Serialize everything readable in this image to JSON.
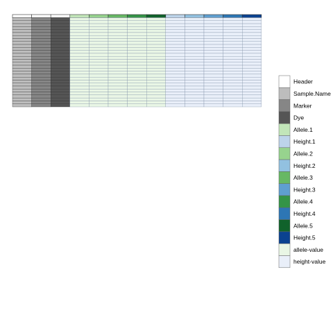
{
  "chart_data": {
    "type": "heatmap",
    "title": "",
    "xlabel": "",
    "ylabel": "",
    "columns": [
      "Sample.Name",
      "Marker",
      "Dye",
      "Allele.1",
      "Allele.2",
      "Allele.3",
      "Allele.4",
      "Allele.5",
      "Height.1",
      "Height.2",
      "Height.3",
      "Height.4",
      "Height.5"
    ],
    "header_row_count": 1,
    "body_row_count": 30,
    "legend_position": "right",
    "legend": [
      {
        "label": "Header",
        "color": "#ffffff"
      },
      {
        "label": "Sample.Name",
        "color": "#bdbdbd"
      },
      {
        "label": "Marker",
        "color": "#868686"
      },
      {
        "label": "Dye",
        "color": "#555555"
      },
      {
        "label": "Allele.1",
        "color": "#c2e6b9"
      },
      {
        "label": "Height.1",
        "color": "#bdd4ea"
      },
      {
        "label": "Allele.2",
        "color": "#97d38e"
      },
      {
        "label": "Height.2",
        "color": "#92c1e0"
      },
      {
        "label": "Allele.3",
        "color": "#67b864"
      },
      {
        "label": "Height.3",
        "color": "#5f9fd0"
      },
      {
        "label": "Allele.4",
        "color": "#349447"
      },
      {
        "label": "Height.4",
        "color": "#2d76b4"
      },
      {
        "label": "Allele.5",
        "color": "#10622b"
      },
      {
        "label": "Height.5",
        "color": "#0b4290"
      },
      {
        "label": "allele-value",
        "color": "#e9f6e5"
      },
      {
        "label": "height-value",
        "color": "#e9eff9"
      }
    ],
    "column_colors": {
      "header_text_column": "#ffffff",
      "body_value_allele": "#e9f6e5",
      "body_value_height": "#e9eff9",
      "header_allele": [
        "#c2e6b9",
        "#97d38e",
        "#67b864",
        "#349447",
        "#10622b"
      ],
      "header_height": [
        "#bdd4ea",
        "#92c1e0",
        "#5f9fd0",
        "#2d76b4",
        "#0b4290"
      ],
      "body_text_columns": [
        "#bdbdbd",
        "#868686",
        "#555555"
      ]
    },
    "grid": true
  }
}
